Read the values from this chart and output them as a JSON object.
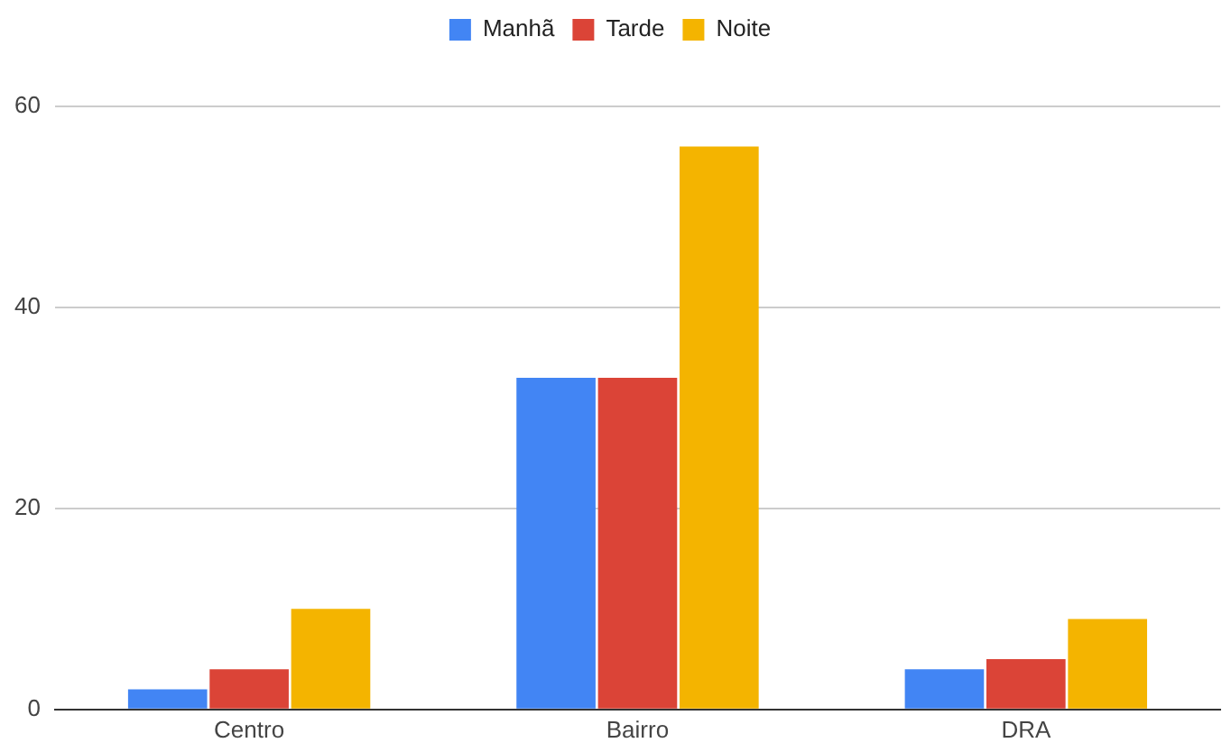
{
  "chart_data": {
    "type": "bar",
    "categories": [
      "Centro",
      "Bairro",
      "DRA"
    ],
    "series": [
      {
        "name": "Manhã",
        "color": "#4285f4",
        "values": [
          2,
          33,
          4
        ]
      },
      {
        "name": "Tarde",
        "color": "#db4437",
        "values": [
          4,
          33,
          5
        ]
      },
      {
        "name": "Noite",
        "color": "#f4b400",
        "values": [
          10,
          56,
          9
        ]
      }
    ],
    "ylim": [
      0,
      60
    ],
    "yticks": [
      0,
      20,
      40,
      60
    ],
    "grid": "y",
    "legend": "top"
  }
}
